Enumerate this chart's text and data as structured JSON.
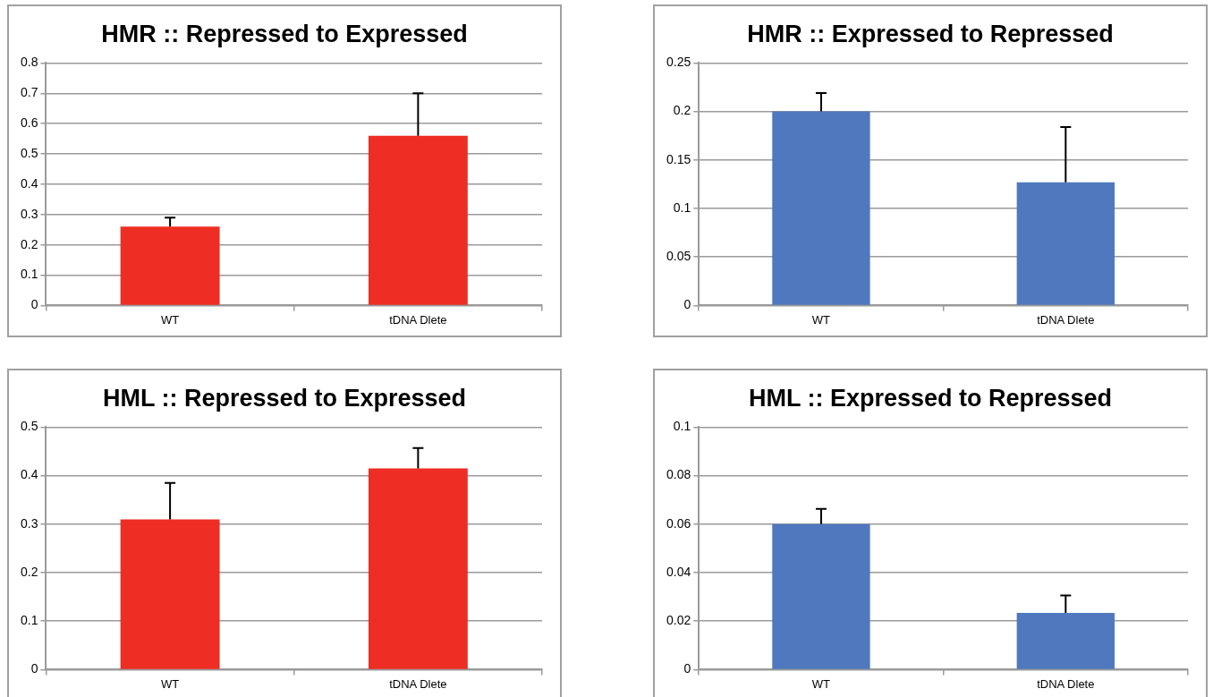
{
  "chart_data": [
    {
      "type": "bar",
      "title": "HMR :: Repressed to Expressed",
      "categories": [
        "WT",
        "tDNA Dlete"
      ],
      "values": [
        0.26,
        0.56
      ],
      "errors": [
        [
          0.26,
          0.29
        ],
        [
          0.56,
          0.7
        ]
      ],
      "color": "#ee2e24",
      "ylim": [
        0,
        0.8
      ],
      "yticks": [
        0,
        0.1,
        0.2,
        0.3,
        0.4,
        0.5,
        0.6,
        0.7,
        0.8
      ],
      "grid": "y",
      "legend": false
    },
    {
      "type": "bar",
      "title": "HMR :: Expressed to Repressed",
      "categories": [
        "WT",
        "tDNA Dlete"
      ],
      "values": [
        0.2,
        0.127
      ],
      "errors": [
        [
          0.2,
          0.219
        ],
        [
          0.127,
          0.184
        ]
      ],
      "color": "#5078be",
      "ylim": [
        0,
        0.25
      ],
      "yticks": [
        0,
        0.05,
        0.1,
        0.15,
        0.2,
        0.25
      ],
      "grid": "y",
      "legend": false
    },
    {
      "type": "bar",
      "title": "HML :: Repressed to Expressed",
      "categories": [
        "WT",
        "tDNA Dlete"
      ],
      "values": [
        0.31,
        0.415
      ],
      "errors": [
        [
          0.31,
          0.385
        ],
        [
          0.415,
          0.457
        ]
      ],
      "color": "#ee2e24",
      "ylim": [
        0,
        0.5
      ],
      "yticks": [
        0,
        0.1,
        0.2,
        0.3,
        0.4,
        0.5
      ],
      "grid": "y",
      "legend": false
    },
    {
      "type": "bar",
      "title": "HML :: Expressed to Repressed",
      "categories": [
        "WT",
        "tDNA Dlete"
      ],
      "values": [
        0.06,
        0.0234
      ],
      "errors": [
        [
          0.06,
          0.0663
        ],
        [
          0.0234,
          0.0306
        ]
      ],
      "color": "#5078be",
      "ylim": [
        0,
        0.1
      ],
      "yticks": [
        0,
        0.02,
        0.04,
        0.06,
        0.08,
        0.1
      ],
      "grid": "y",
      "legend": false
    }
  ]
}
